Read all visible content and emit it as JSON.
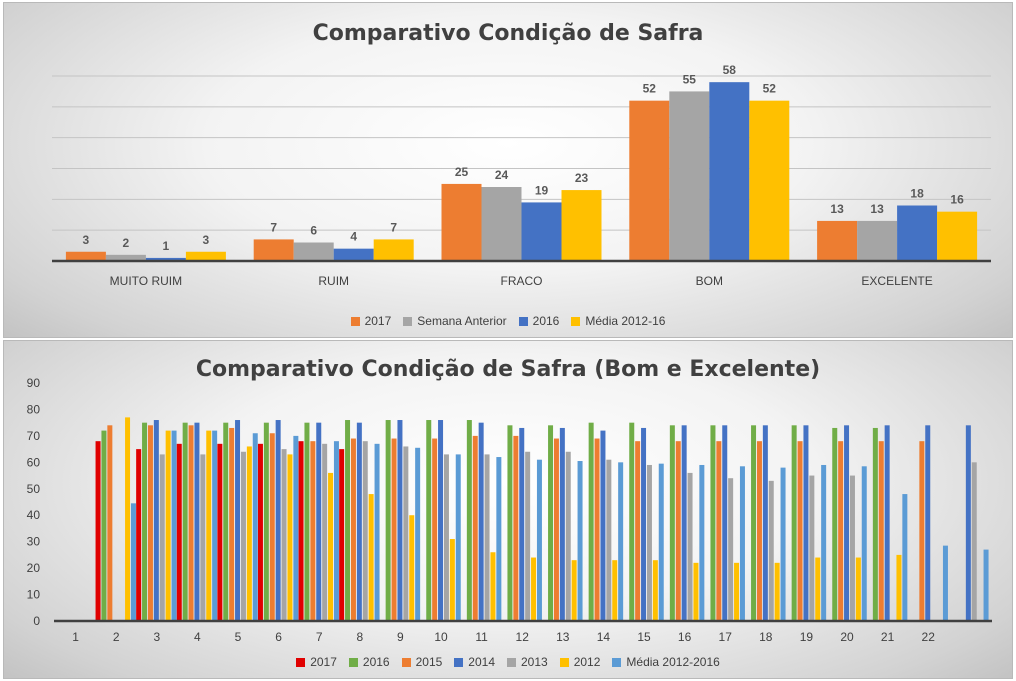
{
  "chart_data": [
    {
      "type": "bar",
      "title": "Comparativo Condição de Safra",
      "categories": [
        "MUITO RUIM",
        "RUIM",
        "FRACO",
        "BOM",
        "EXCELENTE"
      ],
      "ylim": [
        0,
        60
      ],
      "grid": true,
      "legend_position": "bottom",
      "series": [
        {
          "name": "2017",
          "color": "#ed7d31",
          "values": [
            3,
            7,
            25,
            52,
            13
          ]
        },
        {
          "name": "Semana Anterior",
          "color": "#a5a5a5",
          "values": [
            2,
            6,
            24,
            55,
            13
          ]
        },
        {
          "name": "2016",
          "color": "#4472c4",
          "values": [
            1,
            4,
            19,
            58,
            18
          ]
        },
        {
          "name": "Média 2012-16",
          "color": "#ffc000",
          "values": [
            3,
            7,
            23,
            52,
            16
          ]
        }
      ]
    },
    {
      "type": "bar",
      "title": "Comparativo Condição de Safra (Bom e Excelente)",
      "categories": [
        "1",
        "2",
        "3",
        "4",
        "5",
        "6",
        "7",
        "8",
        "9",
        "10",
        "11",
        "12",
        "13",
        "14",
        "15",
        "16",
        "17",
        "18",
        "19",
        "20",
        "21",
        "22"
      ],
      "yticks": [
        "0",
        "10",
        "20",
        "30",
        "40",
        "50",
        "60",
        "70",
        "80",
        "90"
      ],
      "ylim": [
        0,
        90
      ],
      "grid": false,
      "legend_position": "bottom",
      "series": [
        {
          "name": "2017",
          "color": "#e00000",
          "values": [
            68,
            65,
            67,
            67,
            67,
            68,
            65,
            null,
            null,
            null,
            null,
            null,
            null,
            null,
            null,
            null,
            null,
            null,
            null,
            null,
            null,
            null
          ]
        },
        {
          "name": "2016",
          "color": "#70ad47",
          "values": [
            72,
            75,
            75,
            75,
            75,
            75,
            76,
            76,
            76,
            76,
            74,
            74,
            75,
            75,
            74,
            74,
            74,
            74,
            73,
            73,
            null,
            null
          ]
        },
        {
          "name": "2015",
          "color": "#ed7d31",
          "values": [
            74,
            74,
            74,
            73,
            71,
            68,
            69,
            69,
            69,
            70,
            70,
            69,
            69,
            68,
            68,
            68,
            68,
            68,
            68,
            68,
            68,
            null
          ]
        },
        {
          "name": "2014",
          "color": "#4472c4",
          "values": [
            null,
            76,
            75,
            76,
            76,
            75,
            75,
            76,
            76,
            75,
            73,
            73,
            72,
            73,
            74,
            74,
            74,
            74,
            74,
            74,
            74,
            74
          ]
        },
        {
          "name": "2013",
          "color": "#a5a5a5",
          "values": [
            null,
            63,
            63,
            64,
            65,
            67,
            68,
            66,
            63,
            63,
            64,
            64,
            61,
            59,
            56,
            54,
            53,
            55,
            55,
            null,
            null,
            60
          ]
        },
        {
          "name": "2012",
          "color": "#ffc000",
          "values": [
            77,
            72,
            72,
            66,
            63,
            56,
            48,
            40,
            31,
            26,
            24,
            23,
            23,
            23,
            22,
            22,
            22,
            24,
            24,
            25,
            null,
            null
          ]
        },
        {
          "name": "Média 2012-2016",
          "color": "#5b9bd5",
          "values": [
            44.5,
            72,
            72,
            71,
            70,
            68,
            67,
            65.5,
            63,
            62,
            61,
            60.5,
            60,
            59.5,
            59,
            58.5,
            58,
            59,
            58.5,
            48,
            28.5,
            27
          ]
        }
      ]
    }
  ]
}
